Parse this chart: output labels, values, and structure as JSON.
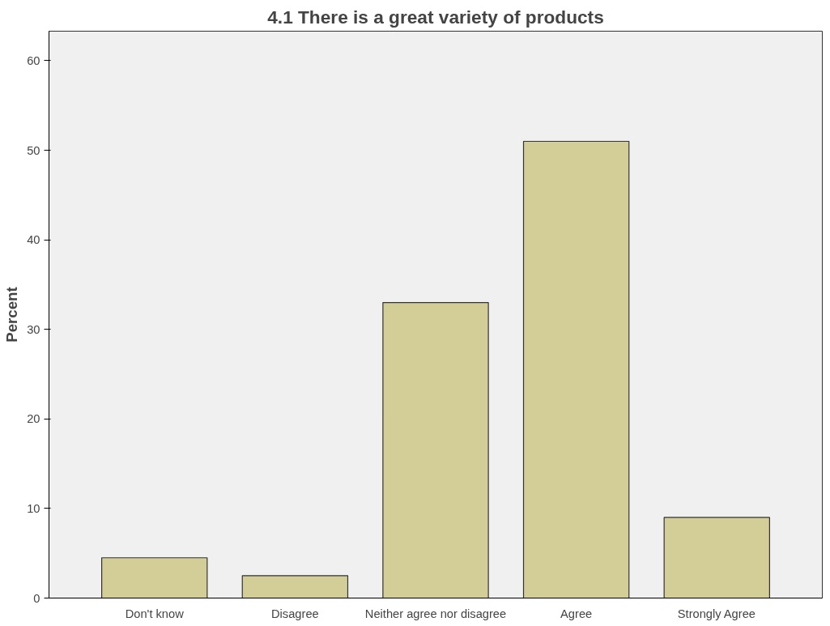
{
  "chart_data": {
    "type": "bar",
    "title": "4.1 There is a great variety of products",
    "ylabel": "Percent",
    "categories": [
      "Don't know",
      "Disagree",
      "Neither agree nor disagree",
      "Agree",
      "Strongly Agree"
    ],
    "values": [
      4.5,
      2.5,
      33,
      51,
      9
    ],
    "color": "#d3ce97",
    "ylim": [
      0,
      63.3
    ],
    "yticks": [
      0,
      10,
      20,
      30,
      40,
      50,
      60
    ],
    "grid": false
  }
}
